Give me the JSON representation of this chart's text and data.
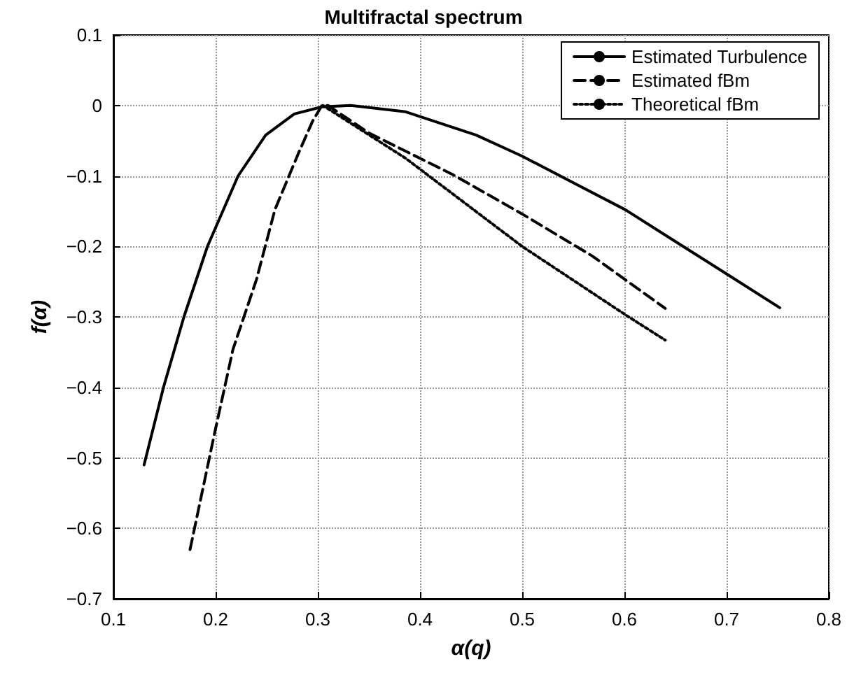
{
  "chart_data": {
    "type": "line",
    "title": "Multifractal spectrum",
    "xlabel": "α(q)",
    "ylabel": "f(α)",
    "xlim": [
      0.1,
      0.8
    ],
    "xticks": [
      0.1,
      0.2,
      0.3,
      0.4,
      0.5,
      0.6,
      0.7,
      0.8
    ],
    "ylim": [
      -0.7,
      0.1
    ],
    "yticks": [
      -0.7,
      -0.6,
      -0.5,
      -0.4,
      -0.3,
      -0.2,
      -0.1,
      0,
      0.1
    ],
    "grid": true,
    "legend": "top right",
    "marker": "none",
    "series": [
      {
        "name": "Estimated Turbulence",
        "color": "#000000",
        "line_style": "solid",
        "x": [
          0.13,
          0.149,
          0.169,
          0.192,
          0.222,
          0.249,
          0.277,
          0.304,
          0.332,
          0.386,
          0.455,
          0.5,
          0.601,
          0.651,
          0.701,
          0.752
        ],
        "values": [
          -0.51,
          -0.4,
          -0.3,
          -0.2,
          -0.1,
          -0.042,
          -0.012,
          -0.002,
          0,
          -0.009,
          -0.042,
          -0.072,
          -0.148,
          -0.194,
          -0.24,
          -0.287
        ]
      },
      {
        "name": "Estimated fBm",
        "color": "#000000",
        "line_style": "dashed",
        "x": [
          0.175,
          0.199,
          0.217,
          0.24,
          0.258,
          0.281,
          0.295,
          0.304,
          0.31,
          0.35,
          0.432,
          0.5,
          0.569,
          0.64
        ],
        "values": [
          -0.63,
          -0.465,
          -0.346,
          -0.247,
          -0.148,
          -0.068,
          -0.022,
          0,
          0,
          -0.039,
          -0.098,
          -0.154,
          -0.214,
          -0.288
        ]
      },
      {
        "name": "Theoretical fBm",
        "color": "#000000",
        "line_style": "dotted",
        "x": [
          0.305,
          0.386,
          0.5,
          0.601,
          0.64
        ],
        "values": [
          0,
          -0.075,
          -0.2,
          -0.297,
          -0.333
        ]
      }
    ]
  }
}
